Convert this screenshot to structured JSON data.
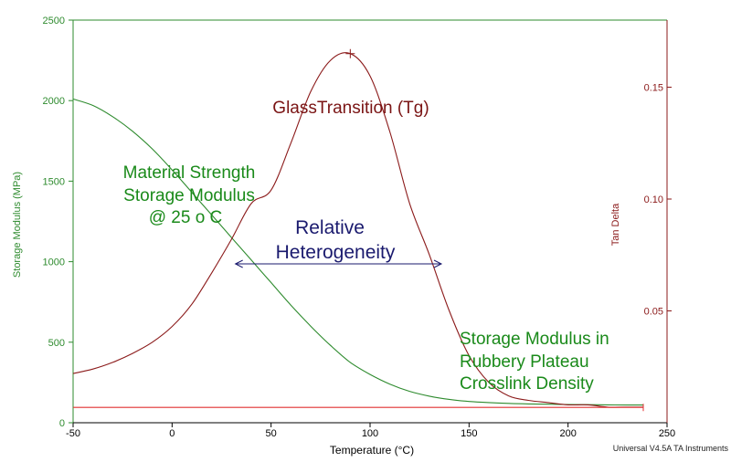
{
  "chart_data": {
    "type": "line",
    "x": [
      -50,
      -40,
      -30,
      -20,
      -10,
      0,
      10,
      20,
      30,
      40,
      50,
      60,
      70,
      80,
      90,
      100,
      110,
      120,
      130,
      140,
      150,
      160,
      170,
      180,
      190,
      200,
      210,
      220,
      230,
      238
    ],
    "xlim": [
      -50,
      250
    ],
    "x_ticks": [
      -50,
      0,
      50,
      100,
      150,
      200,
      250
    ],
    "xlabel": "Temperature (°C)",
    "ylim_left": [
      0,
      2500
    ],
    "y_ticks_left": [
      0,
      500,
      1000,
      1500,
      2000,
      2500
    ],
    "ylabel_left": "Storage Modulus (MPa)",
    "ylim_right": [
      0,
      0.18
    ],
    "y_ticks_right": [
      0.05,
      0.1,
      0.15
    ],
    "y_tick_labels_right": [
      "0.05",
      "0.10",
      "0.15"
    ],
    "ylabel_right": "Tan Delta",
    "series": [
      {
        "axis": "left",
        "color": "#2e8b2e",
        "values": [
          2010,
          1970,
          1900,
          1810,
          1700,
          1570,
          1430,
          1290,
          1150,
          1010,
          870,
          730,
          600,
          480,
          375,
          300,
          240,
          195,
          165,
          145,
          132,
          125,
          120,
          117,
          115,
          113,
          112,
          111,
          110,
          110
        ]
      },
      {
        "axis": "right",
        "color": "#8b1a1a",
        "values": [
          0.022,
          0.024,
          0.027,
          0.031,
          0.036,
          0.043,
          0.053,
          0.067,
          0.082,
          0.098,
          0.104,
          0.125,
          0.148,
          0.162,
          0.165,
          0.155,
          0.13,
          0.098,
          0.075,
          0.05,
          0.03,
          0.018,
          0.012,
          0.01,
          0.009,
          0.008,
          0.008,
          0.007,
          0.007,
          0.007
        ]
      },
      {
        "axis": "left",
        "color": "#e03030",
        "x": [
          -50,
          238
        ],
        "values": [
          95,
          95
        ]
      }
    ],
    "annotations": {
      "tg_label": "GlassTransition (Tg)",
      "strength_line1": "Material Strength",
      "strength_line2": "Storage Modulus",
      "strength_line3": "@ 25  o C",
      "relative_line1": "Relative",
      "relative_line2": "Heterogeneity",
      "rubbery_line1": "Storage Modulus in",
      "rubbery_line2": "Rubbery Plateau",
      "rubbery_line3": "Crosslink Density",
      "heterogeneity_range": [
        32,
        136
      ]
    },
    "footer": "Universal V4.5A TA Instruments",
    "grid": false
  }
}
